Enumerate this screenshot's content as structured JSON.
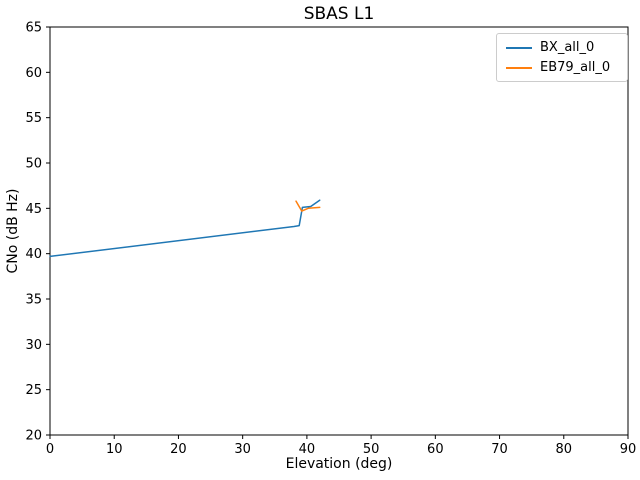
{
  "chart_data": {
    "type": "line",
    "title": "SBAS L1",
    "xlabel": "Elevation (deg)",
    "ylabel": "CNo (dB Hz)",
    "xlim": [
      0,
      90
    ],
    "ylim": [
      20,
      65
    ],
    "xticks": [
      0,
      10,
      20,
      30,
      40,
      50,
      60,
      70,
      80,
      90
    ],
    "yticks": [
      20,
      25,
      30,
      35,
      40,
      45,
      50,
      55,
      60,
      65
    ],
    "grid": false,
    "legend_position": "upper right",
    "series": [
      {
        "name": "BX_all_0",
        "color": "#1f77b4",
        "points": [
          [
            0,
            39.7
          ],
          [
            38,
            43.0
          ],
          [
            38.8,
            43.1
          ],
          [
            39.3,
            45.1
          ],
          [
            40.6,
            45.2
          ],
          [
            42,
            45.9
          ]
        ]
      },
      {
        "name": "EB79_all_0",
        "color": "#ff7f0e",
        "points": [
          [
            38.3,
            45.8
          ],
          [
            39.2,
            44.7
          ],
          [
            40.2,
            45.0
          ],
          [
            42,
            45.1
          ]
        ]
      }
    ]
  }
}
